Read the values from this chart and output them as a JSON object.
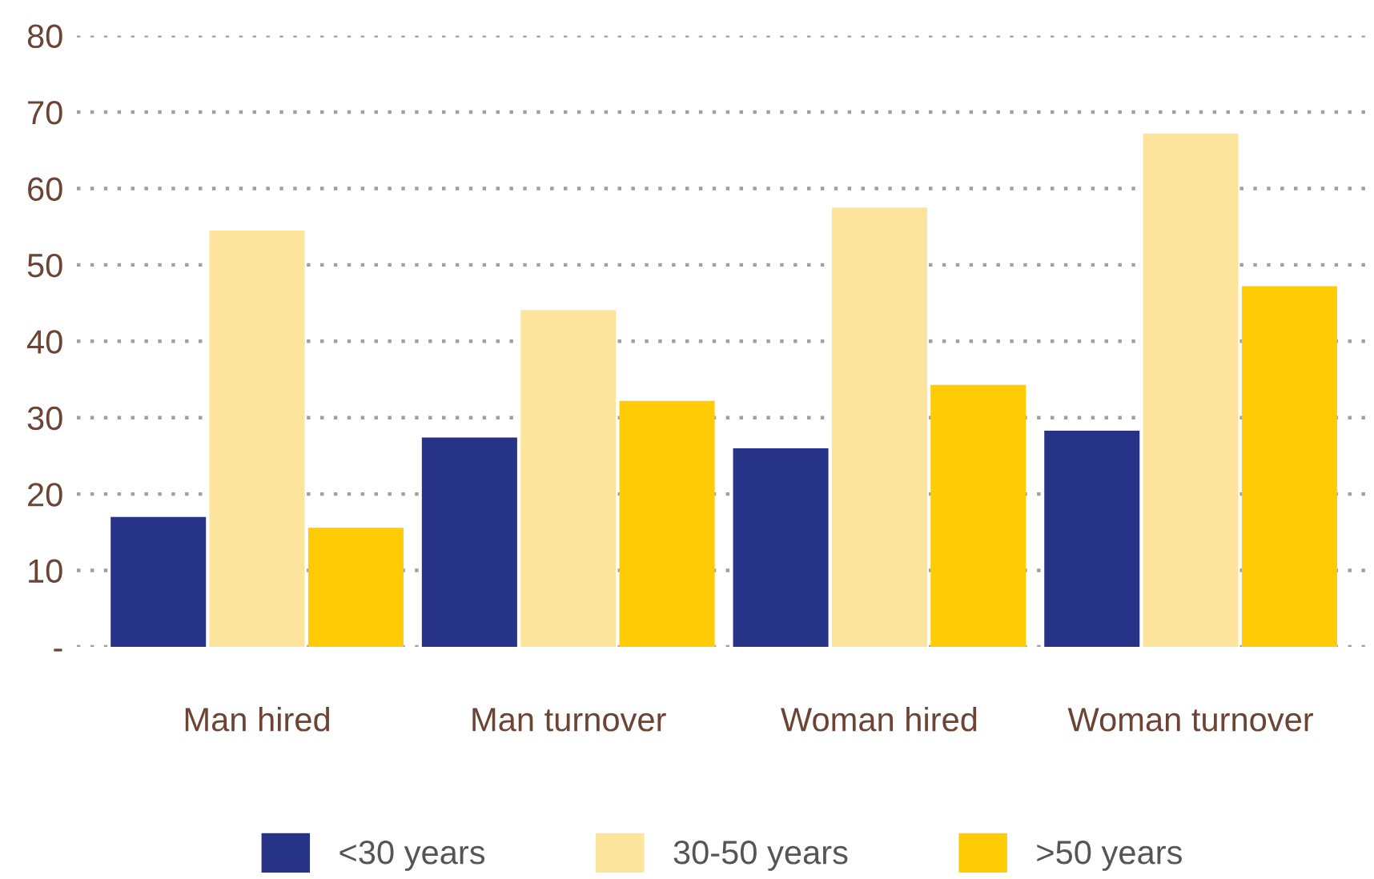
{
  "chart_data": {
    "type": "bar",
    "categories": [
      "Man hired",
      "Man turnover",
      "Woman hired",
      "Woman turnover"
    ],
    "series": [
      {
        "name": "<30 years",
        "color": "#273387",
        "values": [
          17,
          27.4,
          26,
          28.3
        ]
      },
      {
        "name": "30-50 years",
        "color": "#fde49c",
        "values": [
          54.5,
          44.1,
          57.5,
          67.2
        ]
      },
      {
        "name": ">50 years",
        "color": "#fecb05",
        "values": [
          15.6,
          32.2,
          34.3,
          47.2
        ]
      }
    ],
    "ylim": [
      0,
      80
    ],
    "yticks": [
      {
        "value": 0,
        "label": "-"
      },
      10,
      20,
      30,
      40,
      50,
      60,
      70,
      80
    ],
    "grid": "y",
    "legend": "bottom"
  }
}
